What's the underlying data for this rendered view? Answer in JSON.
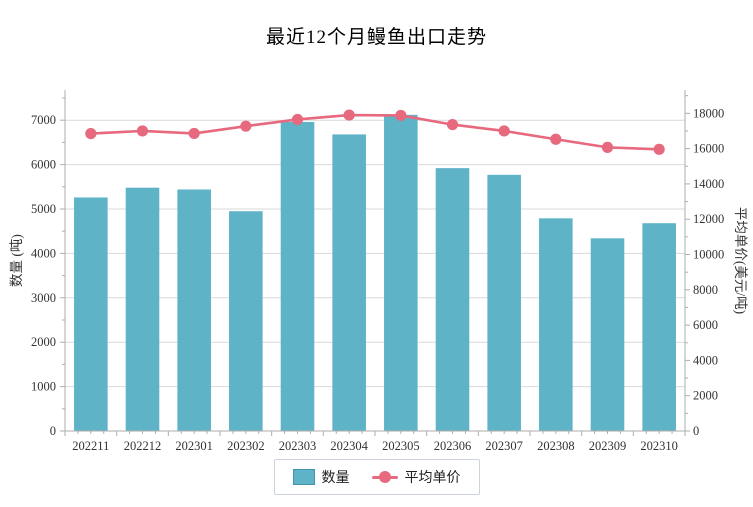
{
  "chart_data": {
    "type": "bar",
    "title": "最近12个月鳗鱼出口走势",
    "categories": [
      "202211",
      "202212",
      "202301",
      "202302",
      "202303",
      "202304",
      "202305",
      "202306",
      "202307",
      "202308",
      "202309",
      "202310"
    ],
    "series": [
      {
        "name": "数量",
        "type": "bar",
        "axis": "left",
        "color": "#5FB3C7",
        "values": [
          5260,
          5480,
          5440,
          4950,
          6960,
          6680,
          7120,
          5920,
          5770,
          4790,
          4340,
          4680
        ]
      },
      {
        "name": "平均单价",
        "type": "line",
        "axis": "right",
        "color": "#E6697D",
        "values": [
          16850,
          17000,
          16860,
          17270,
          17650,
          17900,
          17880,
          17360,
          17000,
          16530,
          16070,
          15960
        ]
      }
    ],
    "axes": {
      "left": {
        "label": "数量 (吨)",
        "min": 0,
        "max": 7680,
        "tick_step": 1000,
        "minor_step": 500,
        "last_tick": 7000
      },
      "right": {
        "label": "平均单价(美元/吨)",
        "min": 0,
        "max": 19320,
        "tick_step": 2000,
        "minor_step": 1000,
        "last_tick": 18000
      }
    },
    "grid": true,
    "legend_position": "bottom",
    "colors": {
      "bar": "#5FB3C7",
      "bar_border": "#4194ab",
      "line": "#E6697D",
      "gridline": "#d9d9d9",
      "spine": "#aeaeae",
      "tick_label": "#333333",
      "axis_title": "#333333",
      "title": "#000000"
    }
  }
}
